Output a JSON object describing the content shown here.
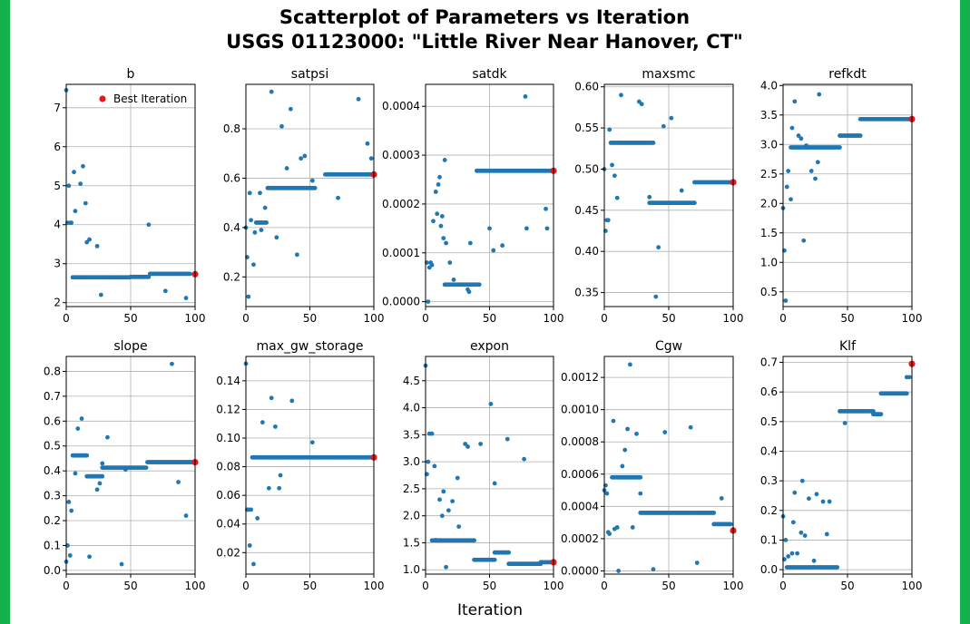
{
  "figure": {
    "title_line1": "Scatterplot of Parameters vs Iteration",
    "title_line2": "USGS 01123000: \"Little River Near Hanover, CT\"",
    "xlabel": "Iteration",
    "legend_label": "Best Iteration"
  },
  "colors": {
    "point": "#1f77b4",
    "best": "#e41a1c",
    "grid": "#b0b0b0",
    "frame": "#16b14f"
  },
  "chart_data": [
    {
      "type": "scatter",
      "title": "b",
      "xlim": [
        0,
        100
      ],
      "ylim": [
        1.9,
        7.6
      ],
      "yticks": [
        2,
        3,
        4,
        5,
        6,
        7
      ],
      "ytick_labels": [
        "2",
        "3",
        "4",
        "5",
        "6",
        "7"
      ],
      "xticks": [
        0,
        50,
        100
      ],
      "xtick_labels": [
        "0",
        "50",
        "100"
      ],
      "runs": [
        [
          5,
          49,
          2.65
        ],
        [
          50,
          64,
          2.66
        ],
        [
          65,
          96,
          2.74
        ]
      ],
      "points": [
        [
          0,
          7.45
        ],
        [
          1,
          4.05
        ],
        [
          2,
          5.0
        ],
        [
          3,
          4.05
        ],
        [
          4,
          4.05
        ],
        [
          6,
          5.35
        ],
        [
          7,
          4.35
        ],
        [
          11,
          5.05
        ],
        [
          13,
          5.5
        ],
        [
          15,
          4.55
        ],
        [
          16,
          3.55
        ],
        [
          18,
          3.62
        ],
        [
          24,
          3.45
        ],
        [
          27,
          2.2
        ],
        [
          64,
          4.0
        ],
        [
          77,
          2.3
        ],
        [
          93,
          2.12
        ]
      ],
      "best": [
        100,
        2.73
      ]
    },
    {
      "type": "scatter",
      "title": "satpsi",
      "xlim": [
        0,
        100
      ],
      "ylim": [
        0.08,
        0.98
      ],
      "yticks": [
        0.2,
        0.4,
        0.6,
        0.8
      ],
      "ytick_labels": [
        "0.2",
        "0.4",
        "0.6",
        "0.8"
      ],
      "xticks": [
        0,
        50,
        100
      ],
      "xtick_labels": [
        "0",
        "50",
        "100"
      ],
      "runs": [
        [
          8,
          16,
          0.42
        ],
        [
          17,
          54,
          0.56
        ],
        [
          62,
          98,
          0.615
        ]
      ],
      "points": [
        [
          0,
          0.4
        ],
        [
          1,
          0.28
        ],
        [
          2,
          0.12
        ],
        [
          3,
          0.54
        ],
        [
          4,
          0.43
        ],
        [
          6,
          0.25
        ],
        [
          7,
          0.38
        ],
        [
          11,
          0.54
        ],
        [
          12,
          0.39
        ],
        [
          15,
          0.48
        ],
        [
          20,
          0.95
        ],
        [
          24,
          0.36
        ],
        [
          28,
          0.81
        ],
        [
          32,
          0.64
        ],
        [
          35,
          0.88
        ],
        [
          40,
          0.29
        ],
        [
          43,
          0.68
        ],
        [
          46,
          0.69
        ],
        [
          52,
          0.59
        ],
        [
          72,
          0.52
        ],
        [
          88,
          0.92
        ],
        [
          95,
          0.74
        ],
        [
          98,
          0.68
        ]
      ],
      "best": [
        100,
        0.615
      ]
    },
    {
      "type": "scatter",
      "title": "satdk",
      "xlim": [
        0,
        100
      ],
      "ylim": [
        -1e-05,
        0.000445
      ],
      "yticks": [
        0.0,
        0.0001,
        0.0002,
        0.0003,
        0.0004
      ],
      "ytick_labels": [
        "0.0000",
        "0.0001",
        "0.0002",
        "0.0003",
        "0.0004"
      ],
      "xticks": [
        0,
        50,
        100
      ],
      "xtick_labels": [
        "0",
        "50",
        "100"
      ],
      "runs": [
        [
          15,
          42,
          3.5e-05
        ],
        [
          40,
          98,
          0.000268
        ]
      ],
      "points": [
        [
          1,
          8e-05
        ],
        [
          2,
          0.0
        ],
        [
          3,
          7e-05
        ],
        [
          4,
          8e-05
        ],
        [
          5,
          7.5e-05
        ],
        [
          6,
          0.000165
        ],
        [
          8,
          0.000225
        ],
        [
          9,
          0.00018
        ],
        [
          10,
          0.00024
        ],
        [
          11,
          0.000255
        ],
        [
          12,
          0.000155
        ],
        [
          13,
          0.000175
        ],
        [
          14,
          0.00013
        ],
        [
          15,
          0.00029
        ],
        [
          16,
          0.00012
        ],
        [
          19,
          8e-05
        ],
        [
          22,
          4.5e-05
        ],
        [
          33,
          2.5e-05
        ],
        [
          34,
          2e-05
        ],
        [
          35,
          0.00012
        ],
        [
          50,
          0.00015
        ],
        [
          53,
          0.000105
        ],
        [
          60,
          0.000115
        ],
        [
          78,
          0.00042
        ],
        [
          79,
          0.00015
        ],
        [
          94,
          0.00019
        ],
        [
          95,
          0.00015
        ]
      ],
      "best": [
        100,
        0.000268
      ]
    },
    {
      "type": "scatter",
      "title": "maxsmc",
      "xlim": [
        0,
        100
      ],
      "ylim": [
        0.333,
        0.603
      ],
      "yticks": [
        0.35,
        0.4,
        0.45,
        0.5,
        0.55,
        0.6
      ],
      "ytick_labels": [
        "0.35",
        "0.40",
        "0.45",
        "0.50",
        "0.55",
        "0.60"
      ],
      "xticks": [
        0,
        50,
        100
      ],
      "xtick_labels": [
        "0",
        "50",
        "100"
      ],
      "runs": [
        [
          5,
          12,
          0.532
        ],
        [
          13,
          38,
          0.532
        ],
        [
          35,
          70,
          0.459
        ],
        [
          70,
          98,
          0.484
        ]
      ],
      "points": [
        [
          0,
          0.5
        ],
        [
          1,
          0.425
        ],
        [
          2,
          0.438
        ],
        [
          3,
          0.438
        ],
        [
          4,
          0.548
        ],
        [
          6,
          0.505
        ],
        [
          8,
          0.492
        ],
        [
          10,
          0.465
        ],
        [
          13,
          0.59
        ],
        [
          27,
          0.582
        ],
        [
          29,
          0.579
        ],
        [
          35,
          0.466
        ],
        [
          40,
          0.345
        ],
        [
          42,
          0.405
        ],
        [
          46,
          0.552
        ],
        [
          52,
          0.562
        ],
        [
          60,
          0.474
        ]
      ],
      "best": [
        100,
        0.484
      ]
    },
    {
      "type": "scatter",
      "title": "refkdt",
      "xlim": [
        0,
        100
      ],
      "ylim": [
        0.25,
        4.02
      ],
      "yticks": [
        0.5,
        1.0,
        1.5,
        2.0,
        2.5,
        3.0,
        3.5,
        4.0
      ],
      "ytick_labels": [
        "0.5",
        "1.0",
        "1.5",
        "2.0",
        "2.5",
        "3.0",
        "3.5",
        "4.0"
      ],
      "xticks": [
        0,
        50,
        100
      ],
      "xtick_labels": [
        "0",
        "50",
        "100"
      ],
      "runs": [
        [
          6,
          44,
          2.95
        ],
        [
          44,
          60,
          3.15
        ],
        [
          60,
          98,
          3.43
        ]
      ],
      "points": [
        [
          0,
          1.92
        ],
        [
          1,
          1.2
        ],
        [
          2,
          0.35
        ],
        [
          3,
          2.28
        ],
        [
          4,
          2.55
        ],
        [
          6,
          2.07
        ],
        [
          7,
          3.28
        ],
        [
          9,
          3.73
        ],
        [
          12,
          3.15
        ],
        [
          14,
          3.1
        ],
        [
          16,
          1.37
        ],
        [
          18,
          2.98
        ],
        [
          22,
          2.55
        ],
        [
          25,
          2.42
        ],
        [
          27,
          2.7
        ],
        [
          28,
          3.85
        ]
      ],
      "best": [
        100,
        3.43
      ]
    },
    {
      "type": "scatter",
      "title": "slope",
      "xlim": [
        0,
        100
      ],
      "ylim": [
        -0.015,
        0.86
      ],
      "yticks": [
        0.0,
        0.1,
        0.2,
        0.3,
        0.4,
        0.5,
        0.6,
        0.7,
        0.8
      ],
      "ytick_labels": [
        "0.0",
        "0.1",
        "0.2",
        "0.3",
        "0.4",
        "0.5",
        "0.6",
        "0.7",
        "0.8"
      ],
      "xticks": [
        0,
        50,
        100
      ],
      "xtick_labels": [
        "0",
        "50",
        "100"
      ],
      "runs": [
        [
          5,
          16,
          0.462
        ],
        [
          16,
          28,
          0.378
        ],
        [
          28,
          62,
          0.413
        ],
        [
          63,
          98,
          0.435
        ]
      ],
      "points": [
        [
          0,
          0.035
        ],
        [
          1,
          0.1
        ],
        [
          2,
          0.275
        ],
        [
          3,
          0.06
        ],
        [
          4,
          0.24
        ],
        [
          7,
          0.39
        ],
        [
          9,
          0.57
        ],
        [
          12,
          0.61
        ],
        [
          18,
          0.055
        ],
        [
          24,
          0.325
        ],
        [
          26,
          0.35
        ],
        [
          28,
          0.43
        ],
        [
          32,
          0.535
        ],
        [
          43,
          0.025
        ],
        [
          46,
          0.405
        ],
        [
          82,
          0.83
        ],
        [
          87,
          0.355
        ],
        [
          93,
          0.22
        ]
      ],
      "best": [
        100,
        0.435
      ]
    },
    {
      "type": "scatter",
      "title": "max_gw_storage",
      "xlim": [
        0,
        100
      ],
      "ylim": [
        0.005,
        0.157
      ],
      "yticks": [
        0.02,
        0.04,
        0.06,
        0.08,
        0.1,
        0.12,
        0.14
      ],
      "ytick_labels": [
        "0.02",
        "0.04",
        "0.06",
        "0.08",
        "0.10",
        "0.12",
        "0.14"
      ],
      "xticks": [
        0,
        50,
        100
      ],
      "xtick_labels": [
        "0",
        "50",
        "100"
      ],
      "runs": [
        [
          5,
          98,
          0.0865
        ]
      ],
      "points": [
        [
          0,
          0.152
        ],
        [
          1,
          0.05
        ],
        [
          2,
          0.05
        ],
        [
          3,
          0.025
        ],
        [
          4,
          0.05
        ],
        [
          6,
          0.012
        ],
        [
          9,
          0.044
        ],
        [
          13,
          0.111
        ],
        [
          18,
          0.065
        ],
        [
          20,
          0.128
        ],
        [
          23,
          0.108
        ],
        [
          26,
          0.065
        ],
        [
          27,
          0.074
        ],
        [
          36,
          0.126
        ],
        [
          52,
          0.097
        ]
      ],
      "best": [
        100,
        0.0865
      ]
    },
    {
      "type": "scatter",
      "title": "expon",
      "xlim": [
        0,
        100
      ],
      "ylim": [
        0.92,
        4.95
      ],
      "yticks": [
        1.0,
        1.5,
        2.0,
        2.5,
        3.0,
        3.5,
        4.0,
        4.5
      ],
      "ytick_labels": [
        "1.0",
        "1.5",
        "2.0",
        "2.5",
        "3.0",
        "3.5",
        "4.0",
        "4.5"
      ],
      "xticks": [
        0,
        50,
        100
      ],
      "xtick_labels": [
        "0",
        "50",
        "100"
      ],
      "runs": [
        [
          5,
          38,
          1.545
        ],
        [
          38,
          54,
          1.185
        ],
        [
          54,
          65,
          1.32
        ],
        [
          65,
          90,
          1.11
        ],
        [
          90,
          98,
          1.14
        ]
      ],
      "points": [
        [
          0,
          4.78
        ],
        [
          1,
          2.77
        ],
        [
          2,
          3.0
        ],
        [
          3,
          3.52
        ],
        [
          5,
          3.52
        ],
        [
          7,
          2.92
        ],
        [
          8,
          1.55
        ],
        [
          11,
          2.3
        ],
        [
          13,
          2.0
        ],
        [
          14,
          2.45
        ],
        [
          16,
          1.05
        ],
        [
          18,
          2.1
        ],
        [
          21,
          2.27
        ],
        [
          25,
          2.7
        ],
        [
          26,
          1.8
        ],
        [
          31,
          3.33
        ],
        [
          33,
          3.28
        ],
        [
          43,
          3.33
        ],
        [
          51,
          4.07
        ],
        [
          54,
          2.6
        ],
        [
          64,
          3.42
        ],
        [
          77,
          3.05
        ]
      ],
      "best": [
        100,
        1.14
      ]
    },
    {
      "type": "scatter",
      "title": "Cgw",
      "xlim": [
        0,
        100
      ],
      "ylim": [
        -2e-05,
        0.00133
      ],
      "yticks": [
        0.0,
        0.0002,
        0.0004,
        0.0006,
        0.0008,
        0.001,
        0.0012
      ],
      "ytick_labels": [
        "0.0000",
        "0.0002",
        "0.0004",
        "0.0006",
        "0.0008",
        "0.0010",
        "0.0012"
      ],
      "xticks": [
        0,
        50,
        100
      ],
      "xtick_labels": [
        "0",
        "50",
        "100"
      ],
      "runs": [
        [
          6,
          28,
          0.00058
        ],
        [
          28,
          85,
          0.00036
        ],
        [
          85,
          98,
          0.00029
        ]
      ],
      "points": [
        [
          0,
          0.0005
        ],
        [
          1,
          0.00053
        ],
        [
          2,
          0.00048
        ],
        [
          3,
          0.00024
        ],
        [
          4,
          0.00023
        ],
        [
          7,
          0.00093
        ],
        [
          8,
          0.00026
        ],
        [
          10,
          0.00027
        ],
        [
          11,
          0.0
        ],
        [
          14,
          0.00065
        ],
        [
          16,
          0.00075
        ],
        [
          18,
          0.00088
        ],
        [
          20,
          0.00128
        ],
        [
          22,
          0.00027
        ],
        [
          25,
          0.00085
        ],
        [
          28,
          0.00048
        ],
        [
          38,
          1e-05
        ],
        [
          47,
          0.00086
        ],
        [
          67,
          0.00089
        ],
        [
          72,
          5e-05
        ],
        [
          91,
          0.00045
        ]
      ],
      "best": [
        100,
        0.00025
      ]
    },
    {
      "type": "scatter",
      "title": "Klf",
      "xlim": [
        0,
        100
      ],
      "ylim": [
        -0.015,
        0.72
      ],
      "yticks": [
        0.0,
        0.1,
        0.2,
        0.3,
        0.4,
        0.5,
        0.6,
        0.7
      ],
      "ytick_labels": [
        "0.0",
        "0.1",
        "0.2",
        "0.3",
        "0.4",
        "0.5",
        "0.6",
        "0.7"
      ],
      "xticks": [
        0,
        50,
        100
      ],
      "xtick_labels": [
        "0",
        "50",
        "100"
      ],
      "runs": [
        [
          3,
          42,
          0.008
        ],
        [
          44,
          70,
          0.535
        ],
        [
          70,
          76,
          0.525
        ],
        [
          76,
          96,
          0.595
        ]
      ],
      "points": [
        [
          0,
          0.18
        ],
        [
          1,
          0.035
        ],
        [
          2,
          0.1
        ],
        [
          4,
          0.045
        ],
        [
          7,
          0.055
        ],
        [
          8,
          0.16
        ],
        [
          9,
          0.26
        ],
        [
          11,
          0.055
        ],
        [
          14,
          0.125
        ],
        [
          15,
          0.3
        ],
        [
          17,
          0.115
        ],
        [
          20,
          0.24
        ],
        [
          24,
          0.03
        ],
        [
          26,
          0.255
        ],
        [
          31,
          0.23
        ],
        [
          34,
          0.12
        ],
        [
          36,
          0.23
        ],
        [
          48,
          0.495
        ],
        [
          96,
          0.65
        ],
        [
          98,
          0.65
        ]
      ],
      "best": [
        100,
        0.695
      ]
    }
  ]
}
